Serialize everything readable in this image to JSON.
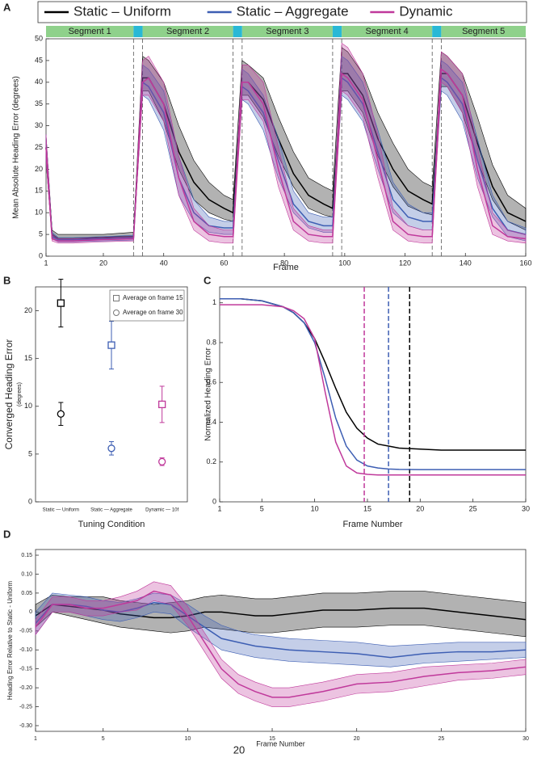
{
  "chart_data": [
    {
      "type": "line",
      "panel": "A",
      "xlabel": "Frame",
      "ylabel": "Mean Absolute Heading Error (degrees)",
      "xlim": [
        1,
        160
      ],
      "ylim": [
        0,
        50
      ],
      "xticks": [
        1,
        20,
        40,
        60,
        80,
        100,
        120,
        140,
        160
      ],
      "yticks": [
        0,
        5,
        10,
        15,
        20,
        25,
        30,
        35,
        40,
        45,
        50
      ],
      "legend": "top",
      "segments": [
        {
          "label": "Segment 1",
          "start": 1,
          "end": 30
        },
        {
          "label": "Segment 2",
          "start": 33,
          "end": 63
        },
        {
          "label": "Segment 3",
          "start": 66,
          "end": 96
        },
        {
          "label": "Segment 4",
          "start": 99,
          "end": 129
        },
        {
          "label": "Segment 5",
          "start": 132,
          "end": 160
        }
      ],
      "dividers": [
        30,
        33,
        63,
        66,
        96,
        99,
        129,
        132
      ],
      "x": [
        1,
        3,
        5,
        10,
        20,
        30,
        33,
        35,
        40,
        45,
        50,
        55,
        60,
        63,
        66,
        68,
        73,
        78,
        83,
        88,
        93,
        96,
        99,
        101,
        106,
        111,
        116,
        121,
        126,
        129,
        132,
        134,
        139,
        144,
        149,
        154,
        160
      ],
      "series": [
        {
          "name": "Static – Uniform",
          "color": "#000000",
          "values": [
            25,
            5,
            4,
            4,
            4.3,
            4.5,
            41,
            41,
            35,
            24,
            17,
            13,
            11,
            10,
            40,
            40,
            36,
            27,
            19,
            14,
            12,
            11,
            42,
            42,
            37,
            27,
            20,
            15,
            13,
            12,
            42,
            42,
            37,
            26,
            16,
            10,
            8
          ],
          "lower": [
            22,
            4,
            3.5,
            3.5,
            3.8,
            4,
            38,
            38,
            31,
            20,
            13,
            10,
            8.5,
            8,
            37,
            37,
            32,
            23,
            16,
            11,
            9.5,
            9,
            38,
            38,
            33,
            23,
            16,
            11.5,
            10,
            9.5,
            39,
            39,
            33,
            22,
            13,
            8,
            6
          ],
          "upper": [
            28,
            6,
            5,
            5,
            5,
            5.5,
            46,
            45,
            40,
            30,
            22,
            17,
            14,
            13,
            45,
            44,
            41,
            32,
            24,
            18,
            16,
            15,
            48,
            47,
            42,
            33,
            26,
            20,
            17,
            16,
            47,
            46,
            42,
            32,
            21,
            14,
            11
          ]
        },
        {
          "name": "Static – Aggregate",
          "color": "#3d5eb3",
          "values": [
            25,
            4.5,
            3.8,
            3.8,
            4,
            4.2,
            40,
            39,
            33,
            18,
            10,
            7,
            6.5,
            6.5,
            39,
            38,
            33,
            22,
            12,
            8,
            7,
            7,
            41,
            40,
            35,
            24,
            13,
            9,
            8,
            8,
            41,
            40,
            35,
            22,
            11,
            6,
            5
          ],
          "lower": [
            22,
            4,
            3.3,
            3.3,
            3.5,
            3.7,
            37,
            36,
            29,
            14,
            8,
            5.5,
            5,
            5,
            36,
            35,
            29,
            18,
            10,
            6.5,
            5.5,
            5.5,
            37,
            36,
            31,
            20,
            10,
            7,
            6,
            6,
            38,
            37,
            31,
            18,
            9,
            4.5,
            3.5
          ],
          "upper": [
            28,
            5.5,
            4.3,
            4.3,
            4.5,
            4.8,
            44,
            43,
            38,
            23,
            13,
            9,
            8,
            8,
            43,
            42,
            37,
            27,
            15,
            10,
            9,
            9,
            46,
            45,
            40,
            29,
            17,
            12,
            10,
            10,
            45,
            44,
            40,
            27,
            14,
            8,
            6.5
          ]
        },
        {
          "name": "Dynamic",
          "color": "#c0399b",
          "values": [
            25,
            4,
            3.5,
            3.5,
            3.8,
            4,
            40,
            41,
            35,
            18,
            8,
            5,
            4.5,
            4.5,
            40,
            40,
            35,
            20,
            8,
            5,
            4.5,
            4.5,
            42,
            41,
            36,
            22,
            8,
            5,
            4.5,
            4.5,
            43,
            42,
            37,
            20,
            7,
            4.5,
            4
          ],
          "lower": [
            22,
            3.5,
            3,
            3,
            3.3,
            3.5,
            37,
            37,
            31,
            14,
            6,
            3.5,
            3,
            3,
            36,
            36,
            31,
            16,
            6,
            3.5,
            3,
            3,
            38,
            37,
            32,
            18,
            6,
            3.5,
            3,
            3,
            40,
            39,
            33,
            16,
            5,
            3.5,
            3
          ],
          "upper": [
            28,
            5,
            4,
            4,
            4.3,
            4.5,
            45,
            46,
            40,
            23,
            11,
            7,
            6,
            6,
            44,
            44,
            40,
            25,
            11,
            7,
            6,
            6,
            49,
            48,
            42,
            28,
            11,
            7,
            6,
            6,
            47,
            46,
            42,
            25,
            10,
            6,
            5
          ]
        }
      ]
    },
    {
      "type": "errorbar",
      "panel": "B",
      "xlabel": "Tuning Condition",
      "ylabel": "Converged Heading Error",
      "ylabel_note": "(degrees)",
      "ylim": [
        0,
        22.5
      ],
      "yticks": [
        0,
        5,
        10,
        15,
        20
      ],
      "legend": "upper right",
      "legend_color": "#777777",
      "categories": [
        "Static — Uniform",
        "Static — Aggregate",
        "Dynamic — 10f"
      ],
      "category_colors": [
        "#000000",
        "#3d5eb3",
        "#c0399b"
      ],
      "series": [
        {
          "name": "Average on frame 15",
          "marker": "square",
          "values": [
            20.8,
            16.4,
            10.2
          ],
          "errors": [
            2.5,
            2.5,
            1.9
          ]
        },
        {
          "name": "Average on frame 30",
          "marker": "circle",
          "values": [
            9.2,
            5.6,
            4.2
          ],
          "errors": [
            1.2,
            0.7,
            0.4
          ]
        }
      ]
    },
    {
      "type": "line",
      "panel": "C",
      "xlabel": "Frame Number",
      "ylabel": "Normalized Heading Error",
      "xlim": [
        1,
        30
      ],
      "ylim": [
        0,
        1.08
      ],
      "xticks": [
        1,
        5,
        10,
        15,
        20,
        25,
        30
      ],
      "yticks": [
        0,
        0.2,
        0.4,
        0.6,
        0.8,
        1
      ],
      "x": [
        1,
        3,
        5,
        7,
        8,
        9,
        10,
        11,
        12,
        13,
        14,
        15,
        16,
        17,
        18,
        20,
        22,
        25,
        30
      ],
      "series": [
        {
          "color": "#000000",
          "converged_frame": 19,
          "values": [
            1.02,
            1.02,
            1.01,
            0.98,
            0.95,
            0.9,
            0.82,
            0.7,
            0.57,
            0.45,
            0.37,
            0.32,
            0.29,
            0.28,
            0.27,
            0.265,
            0.26,
            0.26,
            0.26
          ]
        },
        {
          "color": "#3d5eb3",
          "converged_frame": 17,
          "values": [
            1.02,
            1.02,
            1.01,
            0.98,
            0.95,
            0.9,
            0.8,
            0.62,
            0.42,
            0.28,
            0.21,
            0.18,
            0.17,
            0.165,
            0.163,
            0.162,
            0.162,
            0.162,
            0.162
          ]
        },
        {
          "color": "#c0399b",
          "converged_frame": 14.7,
          "values": [
            0.99,
            0.99,
            0.99,
            0.98,
            0.96,
            0.92,
            0.82,
            0.55,
            0.3,
            0.18,
            0.145,
            0.138,
            0.135,
            0.135,
            0.135,
            0.135,
            0.135,
            0.135,
            0.135
          ]
        }
      ]
    },
    {
      "type": "line",
      "panel": "D",
      "xlabel": "Frame Number",
      "ylabel": "Heading Error Relative to Static - Uniform",
      "xlim": [
        1,
        30
      ],
      "ylim": [
        -0.315,
        0.165
      ],
      "xticks": [
        1,
        5,
        10,
        15,
        20,
        25,
        30
      ],
      "yticks": [
        0.15,
        {
          "value": 0.1,
          "label": "0.10"
        },
        0.05,
        0,
        -0.05,
        {
          "value": -0.1,
          "label": "-0.10"
        },
        -0.15,
        {
          "value": -0.2,
          "label": "-0.20"
        },
        -0.25,
        {
          "value": -0.3,
          "label": "-0.30"
        }
      ],
      "x": [
        1,
        2,
        3,
        4,
        5,
        6,
        7,
        8,
        9,
        10,
        11,
        12,
        13,
        14,
        15,
        16,
        18,
        20,
        22,
        24,
        26,
        28,
        30
      ],
      "series": [
        {
          "color": "#000000",
          "values": [
            -0.01,
            0.02,
            0.015,
            0.01,
            0.005,
            -0.005,
            -0.01,
            -0.015,
            -0.015,
            -0.01,
            0,
            0,
            -0.005,
            -0.01,
            -0.01,
            -0.005,
            0.005,
            0.005,
            0.01,
            0.01,
            0,
            -0.01,
            -0.02
          ],
          "lower": [
            -0.04,
            0,
            -0.01,
            -0.02,
            -0.03,
            -0.04,
            -0.045,
            -0.05,
            -0.055,
            -0.05,
            -0.04,
            -0.045,
            -0.05,
            -0.055,
            -0.055,
            -0.05,
            -0.04,
            -0.04,
            -0.035,
            -0.035,
            -0.045,
            -0.055,
            -0.065
          ],
          "upper": [
            0.02,
            0.045,
            0.04,
            0.04,
            0.04,
            0.03,
            0.025,
            0.02,
            0.025,
            0.03,
            0.04,
            0.045,
            0.04,
            0.035,
            0.035,
            0.04,
            0.05,
            0.05,
            0.055,
            0.055,
            0.045,
            0.035,
            0.025
          ]
        },
        {
          "color": "#3d5eb3",
          "values": [
            -0.03,
            0.02,
            0.02,
            0.015,
            0.005,
            0,
            0.01,
            0.025,
            0.02,
            -0.01,
            -0.04,
            -0.07,
            -0.08,
            -0.09,
            -0.095,
            -0.1,
            -0.105,
            -0.11,
            -0.12,
            -0.11,
            -0.105,
            -0.105,
            -0.1
          ],
          "lower": [
            -0.06,
            0,
            0,
            -0.01,
            -0.02,
            -0.025,
            -0.015,
            0,
            -0.005,
            -0.04,
            -0.07,
            -0.1,
            -0.11,
            -0.12,
            -0.125,
            -0.13,
            -0.135,
            -0.14,
            -0.145,
            -0.135,
            -0.13,
            -0.125,
            -0.12
          ],
          "upper": [
            0,
            0.05,
            0.045,
            0.04,
            0.03,
            0.025,
            0.035,
            0.05,
            0.045,
            0.02,
            -0.01,
            -0.035,
            -0.05,
            -0.06,
            -0.065,
            -0.07,
            -0.075,
            -0.08,
            -0.09,
            -0.085,
            -0.08,
            -0.08,
            -0.08
          ]
        },
        {
          "color": "#c0399b",
          "values": [
            -0.04,
            0.02,
            0.02,
            0.01,
            0.01,
            0.02,
            0.03,
            0.055,
            0.045,
            -0.01,
            -0.08,
            -0.15,
            -0.19,
            -0.21,
            -0.225,
            -0.225,
            -0.21,
            -0.19,
            -0.185,
            -0.17,
            -0.16,
            -0.155,
            -0.145
          ],
          "lower": [
            -0.06,
            0,
            0,
            -0.01,
            -0.01,
            0,
            0.005,
            0.03,
            0.02,
            -0.035,
            -0.105,
            -0.175,
            -0.215,
            -0.235,
            -0.25,
            -0.25,
            -0.235,
            -0.215,
            -0.21,
            -0.195,
            -0.18,
            -0.175,
            -0.165
          ],
          "upper": [
            -0.02,
            0.04,
            0.04,
            0.03,
            0.03,
            0.04,
            0.055,
            0.08,
            0.07,
            0.015,
            -0.055,
            -0.125,
            -0.165,
            -0.185,
            -0.2,
            -0.2,
            -0.185,
            -0.165,
            -0.16,
            -0.145,
            -0.14,
            -0.135,
            -0.125
          ]
        }
      ]
    }
  ],
  "page_number": "20"
}
